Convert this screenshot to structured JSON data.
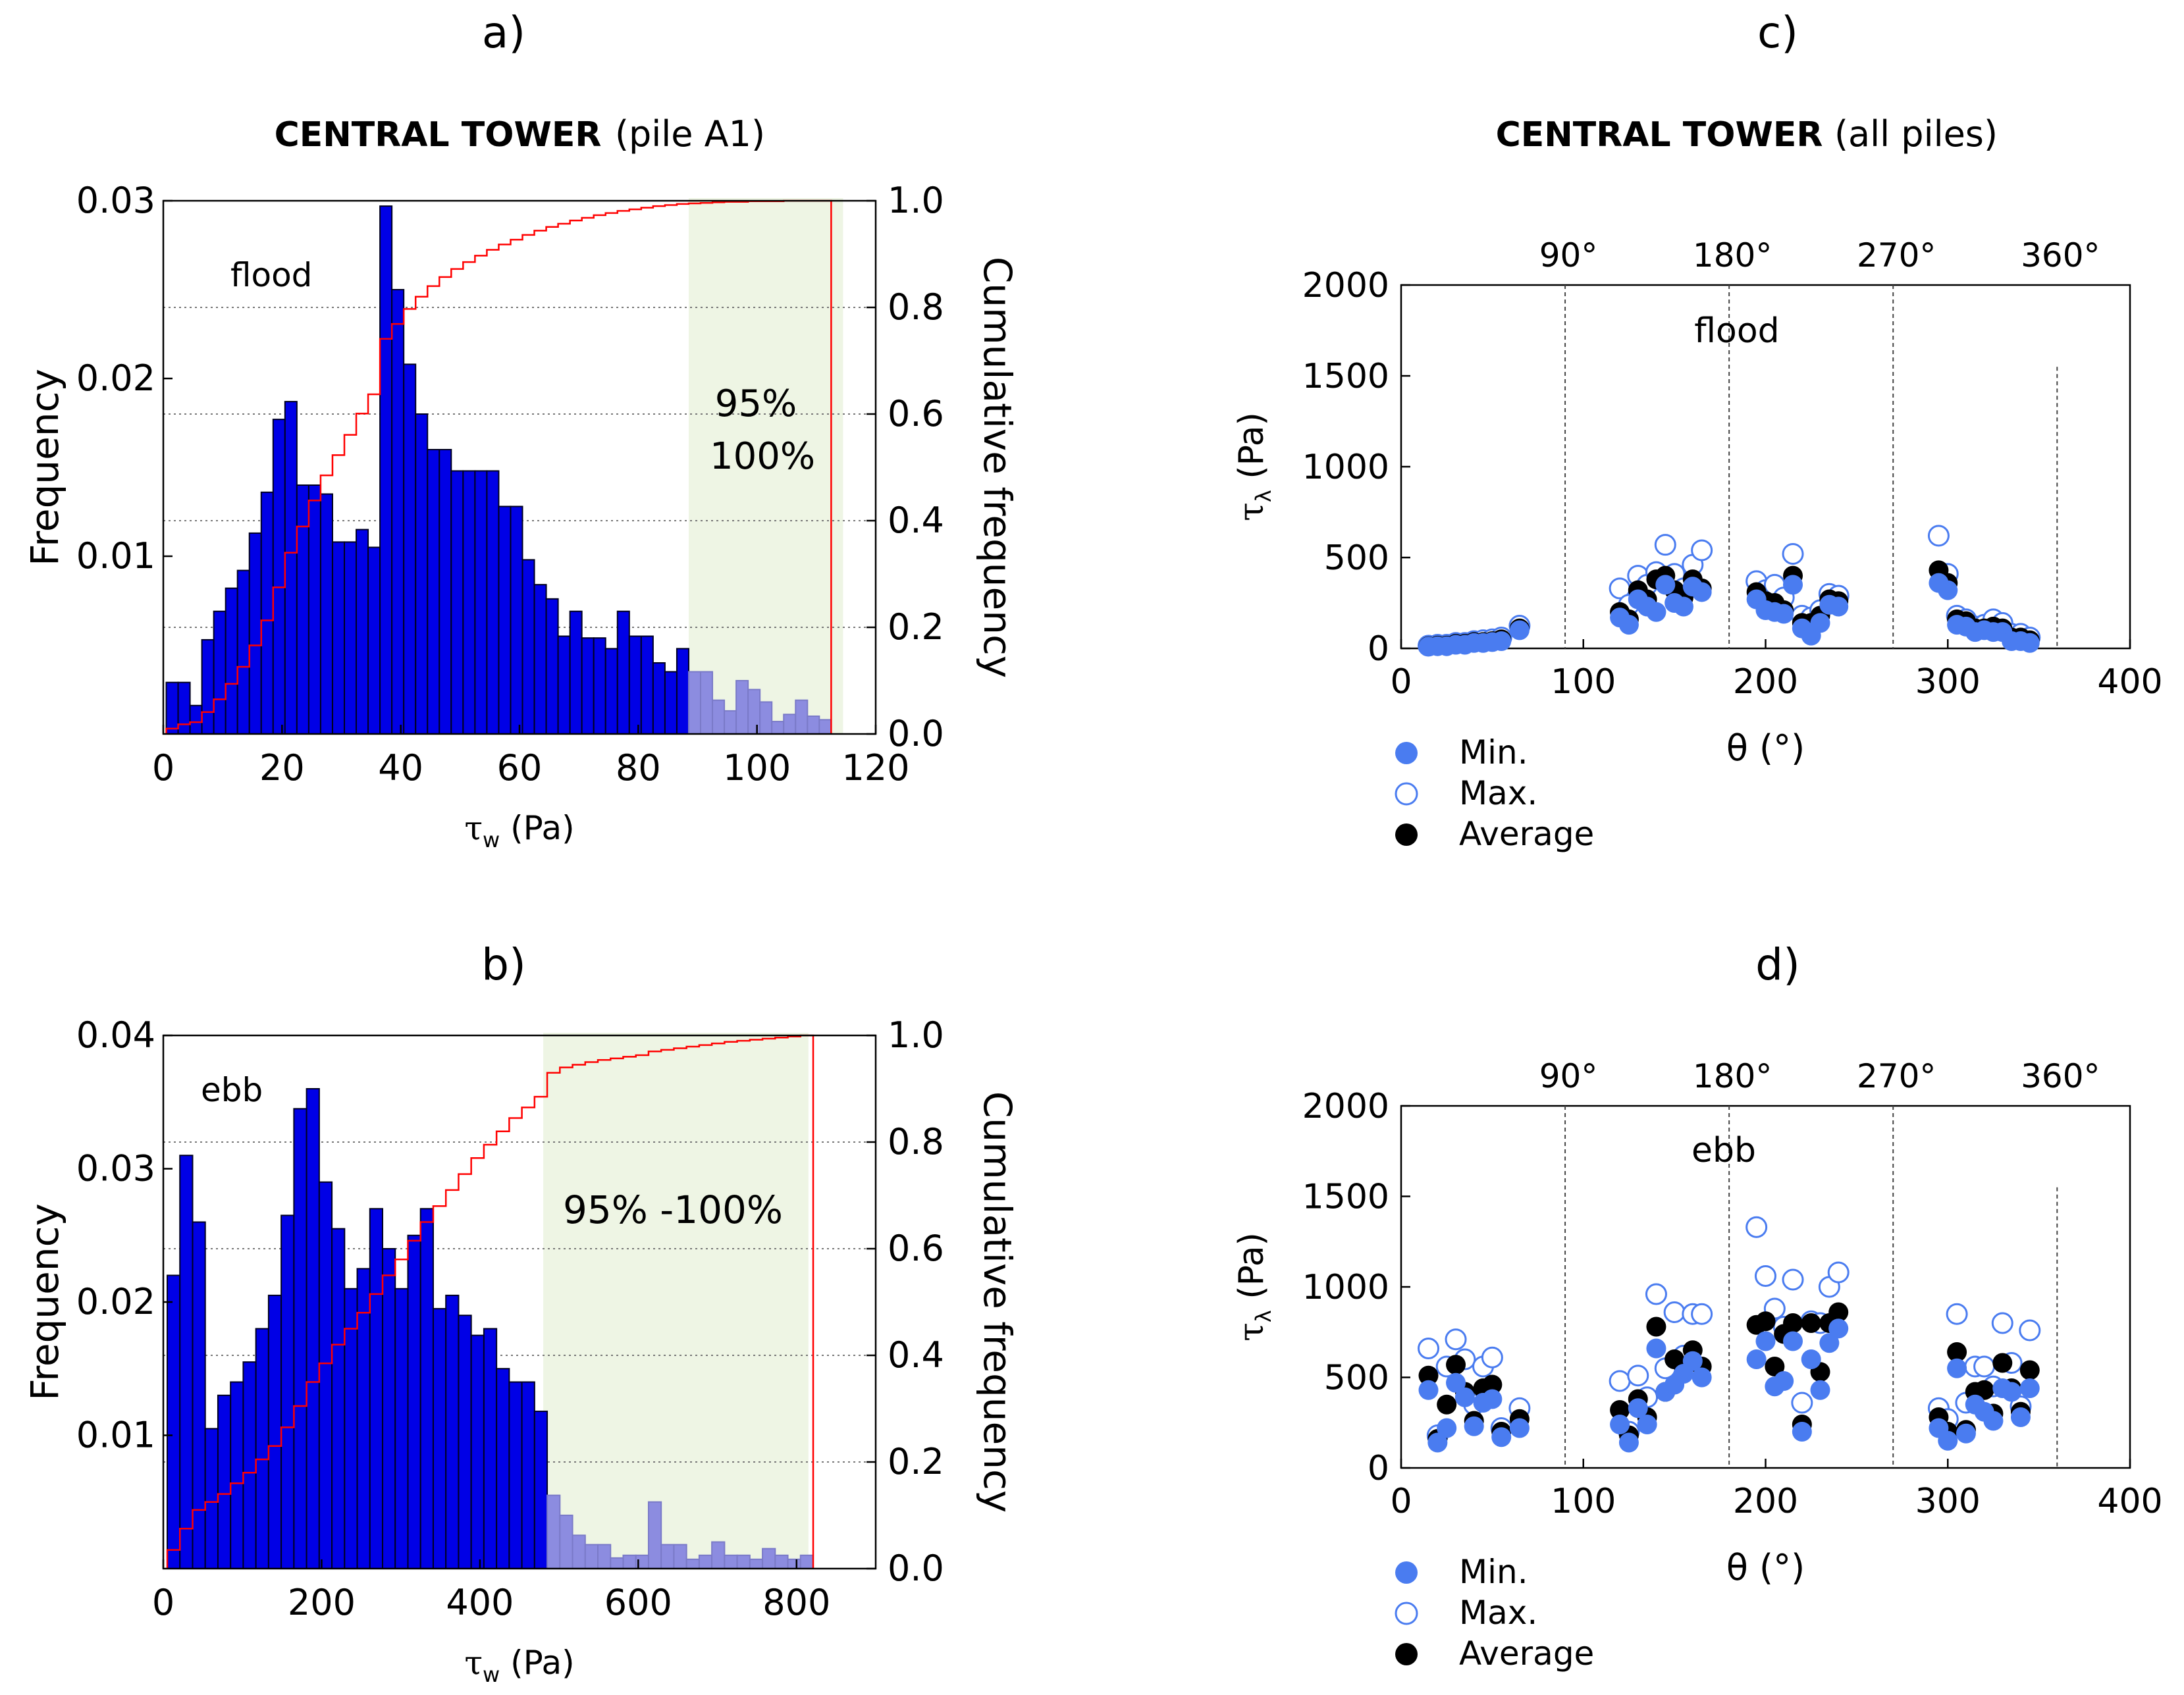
{
  "panels": {
    "a": "a)",
    "b": "b)",
    "c": "c)",
    "d": "d)"
  },
  "titles": {
    "left_bold": "CENTRAL TOWER",
    "left_sub": "(pile A1)",
    "right_bold": "CENTRAL TOWER",
    "right_sub": "(all piles)"
  },
  "colors": {
    "bar_fill": "#0000e6",
    "bar_fill_tail": "#8c8ce0",
    "cumulative": "#ff0000",
    "shade": "#eef5e4",
    "point": "#4a7cf0",
    "average": "#000000"
  },
  "chart_data": [
    {
      "id": "a",
      "type": "bar",
      "title": "CENTRAL TOWER (pile A1)",
      "annotation": "flood",
      "shade_label_1": "95%",
      "shade_label_2": "100%",
      "xlabel_sym": "τ",
      "xlabel_sub": "w",
      "xlabel_unit": "(Pa)",
      "ylabel": "Frequency",
      "ylabel_right": "Cumulative frequency",
      "xlim": [
        0,
        120
      ],
      "ylim": [
        0,
        0.03
      ],
      "y2lim": [
        0,
        1.0
      ],
      "xticks": [
        0,
        20,
        40,
        60,
        80,
        100,
        120
      ],
      "yticks": [
        0.01,
        0.02,
        0.03
      ],
      "ytick_labels": [
        "0.01",
        "0.02",
        "0.03"
      ],
      "y2ticks": [
        0.0,
        0.2,
        0.4,
        0.6,
        0.8,
        1.0
      ],
      "y2tick_labels": [
        "0.0",
        "0.2",
        "0.4",
        "0.6",
        "0.8",
        "1.0"
      ],
      "bin_start": 0.5,
      "bin_width": 2.0,
      "shade_range": [
        88.5,
        114.5
      ],
      "values": [
        0.0029,
        0.0029,
        0.0016,
        0.0053,
        0.0069,
        0.0082,
        0.0092,
        0.0113,
        0.0136,
        0.0177,
        0.0187,
        0.014,
        0.014,
        0.0135,
        0.0108,
        0.0108,
        0.0115,
        0.0105,
        0.0297,
        0.025,
        0.0208,
        0.018,
        0.016,
        0.016,
        0.0148,
        0.0148,
        0.0148,
        0.0148,
        0.0128,
        0.0128,
        0.0098,
        0.0084,
        0.0076,
        0.0055,
        0.0069,
        0.0054,
        0.0054,
        0.0048,
        0.0069,
        0.0055,
        0.0055,
        0.004,
        0.0035,
        0.0048,
        0.0035,
        0.0035,
        0.0019,
        0.0013,
        0.003,
        0.0025,
        0.0018,
        0.0007,
        0.0011,
        0.0019,
        0.001,
        0.0008
      ],
      "cumulative": [
        0.01,
        0.018,
        0.022,
        0.041,
        0.065,
        0.094,
        0.126,
        0.166,
        0.213,
        0.275,
        0.34,
        0.389,
        0.438,
        0.485,
        0.523,
        0.561,
        0.601,
        0.637,
        0.741,
        0.769,
        0.797,
        0.82,
        0.84,
        0.857,
        0.872,
        0.885,
        0.897,
        0.908,
        0.918,
        0.927,
        0.936,
        0.944,
        0.951,
        0.957,
        0.963,
        0.968,
        0.973,
        0.977,
        0.981,
        0.984,
        0.987,
        0.99,
        0.992,
        0.994,
        0.995,
        0.996,
        0.997,
        0.998,
        0.998,
        0.999,
        0.999,
        0.999,
        1.0,
        1.0,
        1.0,
        1.0
      ]
    },
    {
      "id": "b",
      "type": "bar",
      "annotation": "ebb",
      "shade_label": "95% -100%",
      "xlabel_sym": "τ",
      "xlabel_sub": "w",
      "xlabel_unit": "(Pa)",
      "ylabel": "Frequency",
      "ylabel_right": "Cumulative frequency",
      "xlim": [
        0,
        900
      ],
      "ylim": [
        0,
        0.04
      ],
      "y2lim": [
        0,
        1.0
      ],
      "xticks": [
        0,
        200,
        400,
        600,
        800
      ],
      "yticks": [
        0.01,
        0.02,
        0.03,
        0.04
      ],
      "ytick_labels": [
        "0.01",
        "0.02",
        "0.03",
        "0.04"
      ],
      "y2ticks": [
        0.0,
        0.2,
        0.4,
        0.6,
        0.8,
        1.0
      ],
      "y2tick_labels": [
        "0.0",
        "0.2",
        "0.4",
        "0.6",
        "0.8",
        "1.0"
      ],
      "bin_start": 5,
      "bin_width": 16,
      "shade_range": [
        480,
        815
      ],
      "values": [
        0.022,
        0.031,
        0.026,
        0.0105,
        0.013,
        0.014,
        0.0155,
        0.018,
        0.0205,
        0.0265,
        0.0345,
        0.036,
        0.029,
        0.0255,
        0.021,
        0.0225,
        0.027,
        0.024,
        0.021,
        0.025,
        0.027,
        0.0195,
        0.0205,
        0.019,
        0.0175,
        0.018,
        0.015,
        0.014,
        0.014,
        0.0118,
        0.0055,
        0.004,
        0.0025,
        0.0018,
        0.0018,
        0.0008,
        0.001,
        0.001,
        0.005,
        0.0018,
        0.0018,
        0.0007,
        0.001,
        0.002,
        0.001,
        0.001,
        0.0007,
        0.0015,
        0.001,
        0.0007,
        0.001
      ],
      "cumulative": [
        0.035,
        0.075,
        0.11,
        0.125,
        0.14,
        0.16,
        0.18,
        0.205,
        0.23,
        0.265,
        0.305,
        0.35,
        0.385,
        0.42,
        0.45,
        0.48,
        0.515,
        0.55,
        0.58,
        0.615,
        0.65,
        0.68,
        0.71,
        0.74,
        0.77,
        0.795,
        0.82,
        0.845,
        0.865,
        0.885,
        0.93,
        0.94,
        0.945,
        0.95,
        0.954,
        0.957,
        0.96,
        0.963,
        0.97,
        0.973,
        0.976,
        0.979,
        0.982,
        0.985,
        0.988,
        0.99,
        0.992,
        0.994,
        0.996,
        0.998,
        1.0
      ]
    },
    {
      "id": "c",
      "type": "scatter",
      "title": "CENTRAL TOWER (all piles)",
      "annotation": "flood",
      "xlabel": "θ (°)",
      "ylabel_sym": "τ",
      "ylabel_sub": "λ",
      "ylabel_unit": "(Pa)",
      "xlim": [
        0,
        400
      ],
      "ylim": [
        0,
        2000
      ],
      "xticks": [
        0,
        100,
        200,
        300,
        400
      ],
      "yticks": [
        0,
        500,
        1000,
        1500,
        2000
      ],
      "top_ticks": [
        90,
        180,
        270,
        360
      ],
      "top_tick_labels": [
        "90°",
        "180°",
        "270°",
        "360°"
      ],
      "legend": [
        "Min.",
        "Max.",
        "Average"
      ],
      "series": [
        {
          "name": "Max.",
          "x": [
            15,
            20,
            25,
            30,
            35,
            40,
            45,
            50,
            55,
            65,
            120,
            125,
            130,
            135,
            140,
            145,
            150,
            155,
            160,
            165,
            195,
            200,
            205,
            210,
            215,
            220,
            225,
            230,
            235,
            240,
            295,
            300,
            305,
            310,
            315,
            320,
            325,
            330,
            335,
            340,
            345
          ],
          "y": [
            15,
            20,
            20,
            30,
            30,
            40,
            45,
            50,
            60,
            125,
            330,
            240,
            400,
            350,
            420,
            570,
            410,
            330,
            460,
            540,
            370,
            320,
            350,
            280,
            520,
            180,
            170,
            210,
            300,
            290,
            620,
            410,
            180,
            160,
            120,
            130,
            160,
            140,
            80,
            80,
            60
          ]
        },
        {
          "name": "Average",
          "x": [
            15,
            20,
            25,
            30,
            35,
            40,
            45,
            50,
            55,
            65,
            120,
            125,
            130,
            135,
            140,
            145,
            150,
            155,
            160,
            165,
            195,
            200,
            205,
            210,
            215,
            220,
            225,
            230,
            235,
            240,
            295,
            300,
            305,
            310,
            315,
            320,
            325,
            330,
            335,
            340,
            345
          ],
          "y": [
            12,
            15,
            15,
            25,
            25,
            35,
            35,
            40,
            50,
            110,
            200,
            160,
            320,
            270,
            380,
            400,
            320,
            280,
            380,
            330,
            310,
            260,
            250,
            210,
            400,
            140,
            140,
            180,
            270,
            260,
            430,
            360,
            160,
            150,
            110,
            110,
            120,
            110,
            60,
            60,
            45
          ]
        },
        {
          "name": "Min.",
          "x": [
            15,
            20,
            25,
            30,
            35,
            40,
            45,
            50,
            55,
            65,
            120,
            125,
            130,
            135,
            140,
            145,
            150,
            155,
            160,
            165,
            195,
            200,
            205,
            210,
            215,
            220,
            225,
            230,
            235,
            240,
            295,
            300,
            305,
            310,
            315,
            320,
            325,
            330,
            335,
            340,
            345
          ],
          "y": [
            10,
            12,
            12,
            20,
            20,
            30,
            30,
            35,
            40,
            100,
            170,
            130,
            270,
            230,
            200,
            350,
            250,
            230,
            340,
            310,
            270,
            210,
            200,
            190,
            350,
            110,
            70,
            140,
            240,
            230,
            360,
            320,
            130,
            120,
            90,
            100,
            90,
            90,
            40,
            40,
            30
          ]
        }
      ]
    },
    {
      "id": "d",
      "type": "scatter",
      "annotation": "ebb",
      "xlabel": "θ (°)",
      "ylabel_sym": "τ",
      "ylabel_sub": "λ",
      "ylabel_unit": "(Pa)",
      "xlim": [
        0,
        400
      ],
      "ylim": [
        0,
        2000
      ],
      "xticks": [
        0,
        100,
        200,
        300,
        400
      ],
      "yticks": [
        0,
        500,
        1000,
        1500,
        2000
      ],
      "top_ticks": [
        90,
        180,
        270,
        360
      ],
      "top_tick_labels": [
        "90°",
        "180°",
        "270°",
        "360°"
      ],
      "legend": [
        "Min.",
        "Max.",
        "Average"
      ],
      "series": [
        {
          "name": "Max.",
          "x": [
            15,
            20,
            25,
            30,
            35,
            40,
            45,
            50,
            55,
            65,
            120,
            125,
            130,
            135,
            140,
            145,
            150,
            155,
            160,
            165,
            195,
            200,
            205,
            210,
            215,
            220,
            225,
            230,
            235,
            240,
            295,
            300,
            305,
            310,
            315,
            320,
            325,
            330,
            335,
            340,
            345
          ],
          "y": [
            660,
            180,
            560,
            710,
            600,
            350,
            560,
            610,
            220,
            330,
            480,
            200,
            510,
            390,
            960,
            550,
            860,
            620,
            850,
            850,
            1330,
            1060,
            880,
            780,
            1040,
            360,
            810,
            800,
            1000,
            1080,
            330,
            270,
            850,
            360,
            560,
            560,
            450,
            800,
            580,
            340,
            760
          ]
        },
        {
          "name": "Average",
          "x": [
            15,
            20,
            25,
            30,
            35,
            40,
            45,
            50,
            55,
            65,
            120,
            125,
            130,
            135,
            140,
            145,
            150,
            155,
            160,
            165,
            195,
            200,
            205,
            210,
            215,
            220,
            225,
            230,
            235,
            240,
            295,
            300,
            305,
            310,
            315,
            320,
            325,
            330,
            335,
            340,
            345
          ],
          "y": [
            510,
            160,
            350,
            570,
            420,
            260,
            440,
            460,
            200,
            270,
            320,
            180,
            380,
            280,
            780,
            420,
            600,
            560,
            650,
            560,
            790,
            810,
            560,
            740,
            800,
            240,
            800,
            530,
            800,
            860,
            280,
            200,
            640,
            210,
            420,
            430,
            300,
            580,
            440,
            310,
            540
          ]
        },
        {
          "name": "Min.",
          "x": [
            15,
            20,
            25,
            30,
            35,
            40,
            45,
            50,
            55,
            65,
            120,
            125,
            130,
            135,
            140,
            145,
            150,
            155,
            160,
            165,
            195,
            200,
            205,
            210,
            215,
            220,
            225,
            230,
            235,
            240,
            295,
            300,
            305,
            310,
            315,
            320,
            325,
            330,
            335,
            340,
            345
          ],
          "y": [
            430,
            140,
            220,
            470,
            390,
            230,
            360,
            380,
            170,
            220,
            240,
            140,
            330,
            240,
            660,
            420,
            460,
            520,
            590,
            500,
            600,
            700,
            450,
            480,
            700,
            200,
            600,
            430,
            690,
            770,
            220,
            150,
            550,
            190,
            350,
            310,
            260,
            440,
            420,
            280,
            440
          ]
        }
      ]
    }
  ]
}
